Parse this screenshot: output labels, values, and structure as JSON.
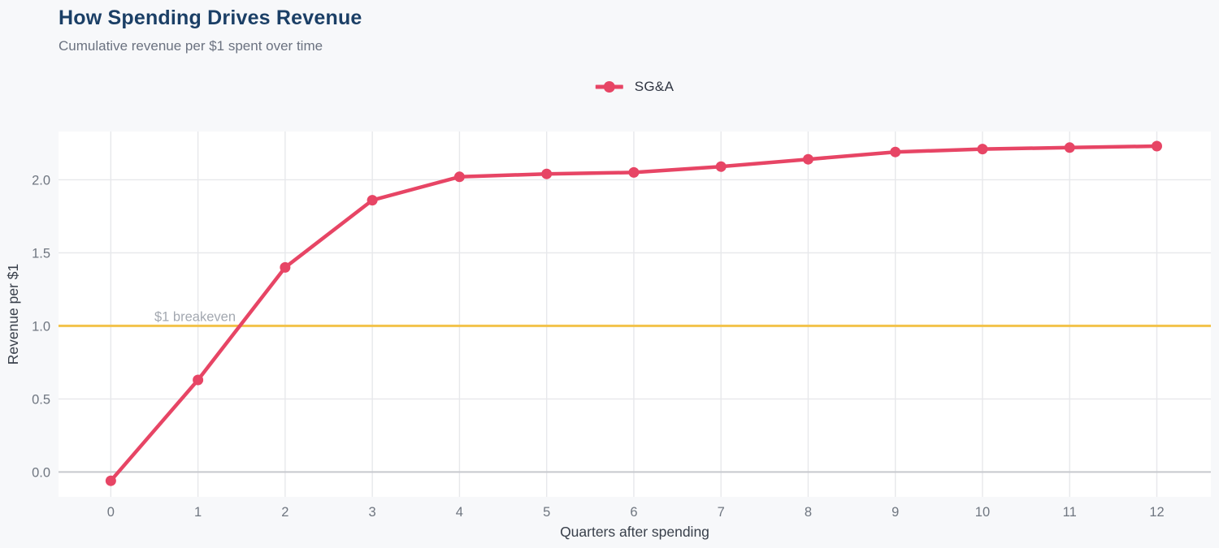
{
  "header": {
    "title": "How Spending Drives Revenue",
    "subtitle": "Cumulative revenue per $1 spent over time"
  },
  "legend": {
    "series_label": "SG&A"
  },
  "annotation": {
    "breakeven_label": "$1 breakeven"
  },
  "colors": {
    "background": "#f7f8fa",
    "plot_background": "#ffffff",
    "title": "#1b3f66",
    "subtitle": "#6b7280",
    "legend_text": "#2f3542",
    "series": "#e74565",
    "reference_line": "#f3c24a",
    "annotation_text": "#a3a8b0",
    "grid": "#e7e8eb",
    "zero_line": "#c7c9ce",
    "tick_label": "#6f7680",
    "axis_title": "#39404b"
  },
  "chart_data": {
    "type": "line",
    "title": "How Spending Drives Revenue",
    "subtitle": "Cumulative revenue per $1 spent over time",
    "xlabel": "Quarters after spending",
    "ylabel": "Revenue per $1",
    "x": [
      0,
      1,
      2,
      3,
      4,
      5,
      6,
      7,
      8,
      9,
      10,
      11,
      12
    ],
    "series": [
      {
        "name": "SG&A",
        "values": [
          -0.06,
          0.63,
          1.4,
          1.86,
          2.02,
          2.04,
          2.05,
          2.09,
          2.14,
          2.19,
          2.21,
          2.22,
          2.23
        ],
        "color": "#e74565"
      }
    ],
    "xticks": [
      0,
      1,
      2,
      3,
      4,
      5,
      6,
      7,
      8,
      9,
      10,
      11,
      12
    ],
    "xtick_labels": [
      "0",
      "1",
      "2",
      "3",
      "4",
      "5",
      "6",
      "7",
      "8",
      "9",
      "10",
      "11",
      "12"
    ],
    "yticks": [
      0.0,
      0.5,
      1.0,
      1.5,
      2.0
    ],
    "ytick_labels": [
      "0.0",
      "0.5",
      "1.0",
      "1.5",
      "2.0"
    ],
    "xlim": [
      -0.6,
      12.62
    ],
    "ylim": [
      -0.17,
      2.33
    ],
    "grid": true,
    "legend_position": "top-center",
    "reference_line": {
      "y": 1.0,
      "label": "$1 breakeven",
      "color": "#f3c24a"
    }
  }
}
